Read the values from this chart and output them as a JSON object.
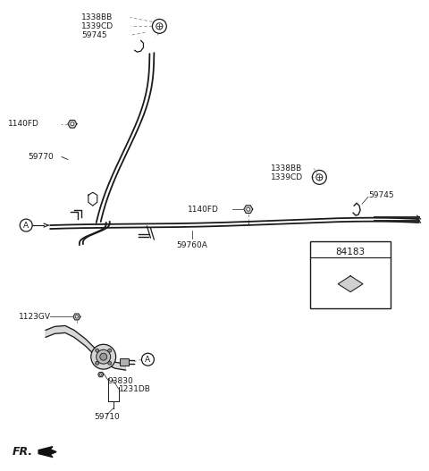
{
  "bg_color": "#ffffff",
  "line_color": "#1a1a1a",
  "text_color": "#1a1a1a",
  "figsize": [
    4.8,
    5.27
  ],
  "dpi": 100,
  "labels": {
    "top_left_group": [
      "1338BB",
      "1339CD",
      "59745"
    ],
    "top_bolt": "1140FD",
    "left_cable": "59770",
    "main_cable": "59760A",
    "right_group": [
      "1338BB",
      "1339CD"
    ],
    "right_bolt": "1140FD",
    "right_clip": "59745",
    "box_label": "84183",
    "bottom_bracket": "1123GV",
    "bottom_switch": "93830",
    "bottom_nut": "1231DB",
    "bottom_cable_end": "59710",
    "fr_label": "FR."
  }
}
